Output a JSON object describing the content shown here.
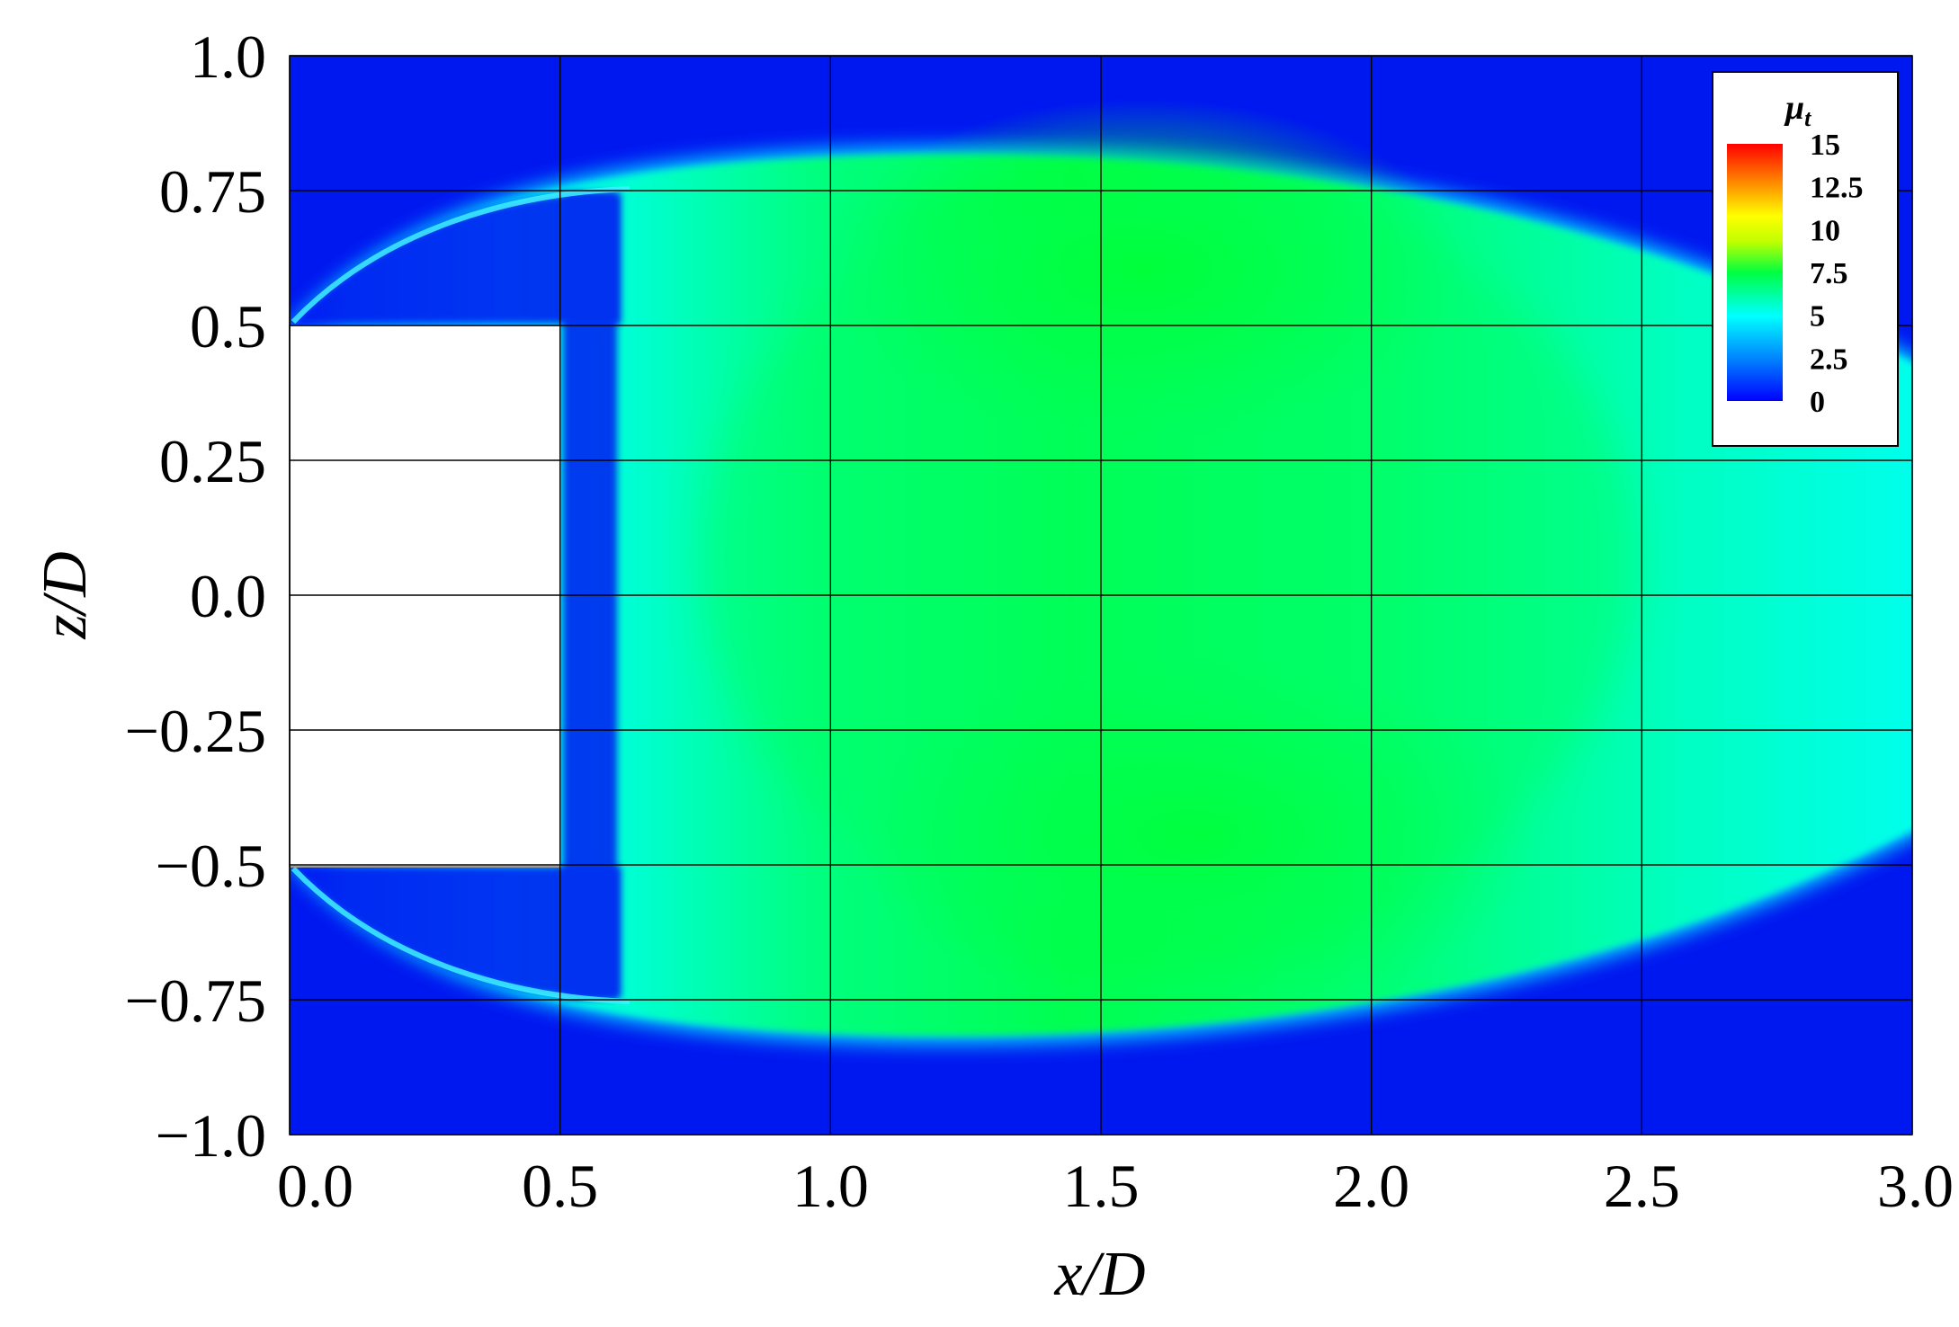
{
  "chart_data": {
    "type": "heatmap",
    "title": "",
    "xlabel": "x/D",
    "ylabel": "z/D",
    "xlim": [
      0,
      3
    ],
    "ylim": [
      -1,
      1
    ],
    "x_ticks": [
      "0.0",
      "0.5",
      "1.0",
      "1.5",
      "2.0",
      "2.5",
      "3.0"
    ],
    "y_ticks": [
      "1.0",
      "0.75",
      "0.5",
      "0.25",
      "0.0",
      "−0.25",
      "−0.5",
      "−0.75",
      "−1.0"
    ],
    "x_tick_values": [
      0,
      0.5,
      1.0,
      1.5,
      2.0,
      2.5,
      3.0
    ],
    "y_tick_values": [
      1.0,
      0.75,
      0.5,
      0.25,
      0.0,
      -0.25,
      -0.5,
      -0.75,
      -1.0
    ],
    "grid": true,
    "body_region": {
      "x": [
        0,
        0.5
      ],
      "z": [
        -0.5,
        0.5
      ]
    },
    "field": {
      "name": "mu_t",
      "peak_value": 8.5,
      "peak_locations": [
        [
          1.4,
          0.62
        ],
        [
          1.5,
          -0.5
        ]
      ],
      "background_value": 0
    },
    "colorbar": {
      "title_main": "μ",
      "title_sub": "t",
      "ticks": [
        "15",
        "12.5",
        "10",
        "7.5",
        "5",
        "2.5",
        "0"
      ],
      "tick_values": [
        15,
        12.5,
        10,
        7.5,
        5,
        2.5,
        0
      ],
      "range": [
        0,
        15
      ],
      "placement": "top-right",
      "colors": [
        "#0000ff",
        "#0080ff",
        "#00ffff",
        "#00ff40",
        "#c0ff00",
        "#ffff00",
        "#ff8000",
        "#ff0000"
      ]
    }
  }
}
